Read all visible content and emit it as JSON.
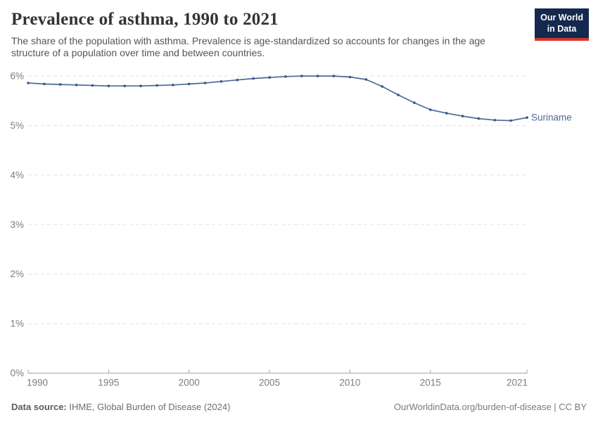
{
  "header": {
    "title": "Prevalence of asthma, 1990 to 2021",
    "subtitle_line1": "The share of the population with asthma. Prevalence is age-standardized so accounts for changes in the age",
    "subtitle_line2": "structure of a population over time and between countries.",
    "logo_line1": "Our World",
    "logo_line2": "in Data"
  },
  "chart_data": {
    "type": "line",
    "title": "Prevalence of asthma, 1990 to 2021",
    "x": [
      1990,
      1991,
      1992,
      1993,
      1994,
      1995,
      1996,
      1997,
      1998,
      1999,
      2000,
      2001,
      2002,
      2003,
      2004,
      2005,
      2006,
      2007,
      2008,
      2009,
      2010,
      2011,
      2012,
      2013,
      2014,
      2015,
      2016,
      2017,
      2018,
      2019,
      2020,
      2021
    ],
    "series": [
      {
        "name": "Suriname",
        "color": "#4c6a9c",
        "marker_color": "#3a557f",
        "values": [
          5.86,
          5.84,
          5.83,
          5.82,
          5.81,
          5.8,
          5.8,
          5.8,
          5.81,
          5.82,
          5.84,
          5.86,
          5.89,
          5.92,
          5.95,
          5.97,
          5.99,
          6.0,
          6.0,
          6.0,
          5.98,
          5.93,
          5.79,
          5.62,
          5.46,
          5.32,
          5.25,
          5.19,
          5.14,
          5.11,
          5.1,
          5.16
        ]
      }
    ],
    "xlabel": "",
    "ylabel": "",
    "ylim": [
      0,
      6
    ],
    "yticks": [
      0,
      1,
      2,
      3,
      4,
      5,
      6
    ],
    "ytick_suffix": "%",
    "xticks": [
      1990,
      1995,
      2000,
      2005,
      2010,
      2015,
      2021
    ],
    "grid": "horizontal-dashed",
    "legend_position": "end-of-line-label"
  },
  "footer": {
    "source_label": "Data source:",
    "source_text": " IHME, Global Burden of Disease (2024)",
    "link_text": "OurWorldinData.org/burden-of-disease | CC BY"
  },
  "colors": {
    "line": "#4c6a9c",
    "marker": "#3a557f",
    "gridline": "#e3e3e3",
    "axis": "#a3a3a3",
    "tick_label": "#7d7d7d",
    "logo_bg": "#13294e",
    "logo_red": "#d8352a",
    "title_text": "#333333",
    "subtitle_text": "#555555"
  }
}
